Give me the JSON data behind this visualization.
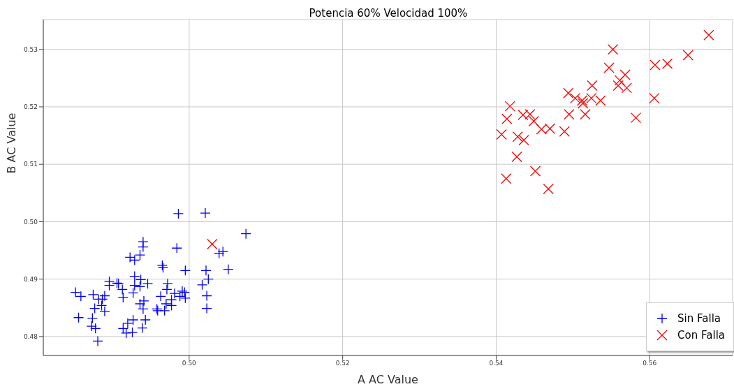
{
  "chart_data": {
    "type": "scatter",
    "title": "Potencia 60% Velocidad 100%",
    "xlabel": "A AC Value",
    "ylabel": "B AC Value",
    "xlim": [
      0.481,
      0.5708
    ],
    "ylim": [
      0.4767,
      0.5352
    ],
    "xticks": [
      {
        "value": 0.5,
        "label": "0.50"
      },
      {
        "value": 0.52,
        "label": "0.52"
      },
      {
        "value": 0.54,
        "label": "0.54"
      },
      {
        "value": 0.56,
        "label": "0.56"
      }
    ],
    "yticks": [
      {
        "value": 0.48,
        "label": "0.48"
      },
      {
        "value": 0.49,
        "label": "0.49"
      },
      {
        "value": 0.5,
        "label": "0.50"
      },
      {
        "value": 0.51,
        "label": "0.51"
      },
      {
        "value": 0.52,
        "label": "0.52"
      },
      {
        "value": 0.53,
        "label": "0.53"
      }
    ],
    "grid": true,
    "legend": "bottom right",
    "series": [
      {
        "name": "Sin Falla",
        "color": "#0000ff",
        "marker": "plus",
        "x": [
          0.4986,
          0.5021,
          0.5074,
          0.494,
          0.494,
          0.4984,
          0.5044,
          0.5039,
          0.4923,
          0.4929,
          0.4936,
          0.4965,
          0.4966,
          0.4995,
          0.5022,
          0.5051,
          0.5025,
          0.5017,
          0.4896,
          0.4896,
          0.4906,
          0.4908,
          0.4929,
          0.4937,
          0.4929,
          0.4936,
          0.4946,
          0.4972,
          0.4971,
          0.4913,
          0.4852,
          0.4859,
          0.4875,
          0.489,
          0.4927,
          0.4914,
          0.4882,
          0.4887,
          0.4886,
          0.4877,
          0.489,
          0.4963,
          0.4981,
          0.4991,
          0.4994,
          0.4988,
          0.4995,
          0.5023,
          0.4977,
          0.497,
          0.4977,
          0.4941,
          0.4936,
          0.494,
          0.4958,
          0.4959,
          0.4968,
          0.5023,
          0.4856,
          0.4874,
          0.4873,
          0.4878,
          0.4927,
          0.4943,
          0.492,
          0.4914,
          0.4939,
          0.4918,
          0.4926,
          0.4881
        ],
        "values": [
          0.5014,
          0.5015,
          0.4979,
          0.4965,
          0.4956,
          0.4954,
          0.4948,
          0.4945,
          0.4938,
          0.4933,
          0.4942,
          0.4924,
          0.492,
          0.4915,
          0.4915,
          0.4917,
          0.49,
          0.489,
          0.4896,
          0.4889,
          0.4893,
          0.4892,
          0.4905,
          0.4899,
          0.4889,
          0.4887,
          0.4892,
          0.4892,
          0.4882,
          0.4882,
          0.4877,
          0.487,
          0.4873,
          0.4871,
          0.4876,
          0.4868,
          0.4865,
          0.4865,
          0.4854,
          0.4849,
          0.4844,
          0.487,
          0.4875,
          0.4879,
          0.4877,
          0.487,
          0.4867,
          0.4871,
          0.4864,
          0.4857,
          0.4854,
          0.4862,
          0.4857,
          0.4848,
          0.4848,
          0.4845,
          0.4845,
          0.4849,
          0.4833,
          0.4832,
          0.4818,
          0.4814,
          0.4829,
          0.4829,
          0.4823,
          0.4814,
          0.4815,
          0.4806,
          0.4807,
          0.4792
        ]
      },
      {
        "name": "Con Falla",
        "color": "#ff0000",
        "marker": "cross",
        "x": [
          0.503,
          0.5677,
          0.5552,
          0.565,
          0.5547,
          0.5607,
          0.5623,
          0.5568,
          0.5561,
          0.5559,
          0.557,
          0.5525,
          0.5494,
          0.5503,
          0.5512,
          0.5513,
          0.5524,
          0.5536,
          0.5606,
          0.5418,
          0.5414,
          0.5435,
          0.5444,
          0.5449,
          0.5459,
          0.547,
          0.5495,
          0.5516,
          0.5582,
          0.5489,
          0.5407,
          0.5428,
          0.5436,
          0.5427,
          0.5451,
          0.5413,
          0.5468
        ],
        "values": [
          0.4961,
          0.5325,
          0.53,
          0.529,
          0.5268,
          0.5273,
          0.5275,
          0.5256,
          0.5246,
          0.5237,
          0.5233,
          0.5237,
          0.5224,
          0.5215,
          0.5211,
          0.5206,
          0.5215,
          0.5211,
          0.5215,
          0.5201,
          0.5179,
          0.5186,
          0.5187,
          0.5175,
          0.5161,
          0.5162,
          0.5187,
          0.5187,
          0.5181,
          0.5157,
          0.5152,
          0.5148,
          0.5142,
          0.5113,
          0.5088,
          0.5075,
          0.5057
        ]
      }
    ]
  }
}
